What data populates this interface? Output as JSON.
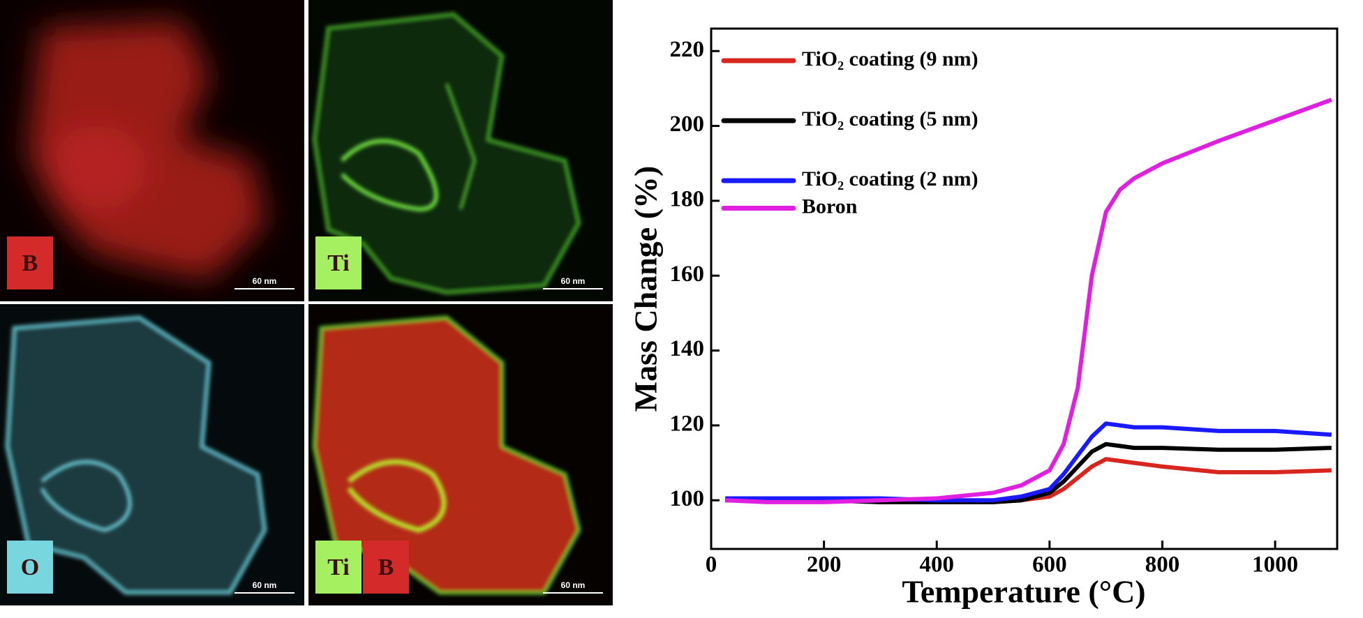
{
  "panels": [
    {
      "labels": [
        "B"
      ],
      "scale": "60 nm"
    },
    {
      "labels": [
        "Ti"
      ],
      "scale": "60 nm"
    },
    {
      "labels": [
        "O"
      ],
      "scale": "60 nm"
    },
    {
      "labels": [
        "Ti",
        "B"
      ],
      "scale": "60 nm"
    }
  ],
  "chart_data": {
    "type": "line",
    "x_label": "Temperature (°C)",
    "y_label": "Mass Change (%)",
    "x": [
      25,
      100,
      200,
      300,
      400,
      500,
      550,
      600,
      625,
      650,
      675,
      700,
      725,
      750,
      800,
      900,
      1000,
      1100
    ],
    "series": [
      {
        "name": "TiO₂ coating (9 nm)",
        "color": "#d7261e",
        "values": [
          100,
          100,
          100,
          99.5,
          99.5,
          99.5,
          100,
          101,
          103,
          106,
          109,
          111,
          110.5,
          110,
          109,
          107.5,
          107.5,
          108
        ]
      },
      {
        "name": "TiO₂ coating (5 nm)",
        "color": "#000000",
        "values": [
          100,
          100,
          100,
          99.5,
          99.5,
          99.5,
          100,
          102,
          105,
          109,
          113,
          115,
          114.5,
          114,
          114,
          113.5,
          113.5,
          114
        ]
      },
      {
        "name": "TiO₂ coating (2 nm)",
        "color": "#1a1aff",
        "values": [
          100.5,
          100.5,
          100.5,
          100.5,
          100,
          100,
          101,
          103,
          107,
          112,
          117,
          120.5,
          120,
          119.5,
          119.5,
          118.5,
          118.5,
          117.5
        ]
      },
      {
        "name": "Boron",
        "color": "#e020e0",
        "values": [
          100,
          99.5,
          99.5,
          100,
          100.5,
          102,
          104,
          108,
          115,
          130,
          160,
          177,
          183,
          186,
          190,
          196,
          201.5,
          207
        ]
      }
    ],
    "xlim": [
      0,
      1110
    ],
    "ylim": [
      87,
      226
    ],
    "xticks": [
      0,
      200,
      400,
      600,
      800,
      1000
    ],
    "yticks": [
      100,
      120,
      140,
      160,
      180,
      200,
      220
    ],
    "grid": false,
    "legend": "upper-left"
  }
}
